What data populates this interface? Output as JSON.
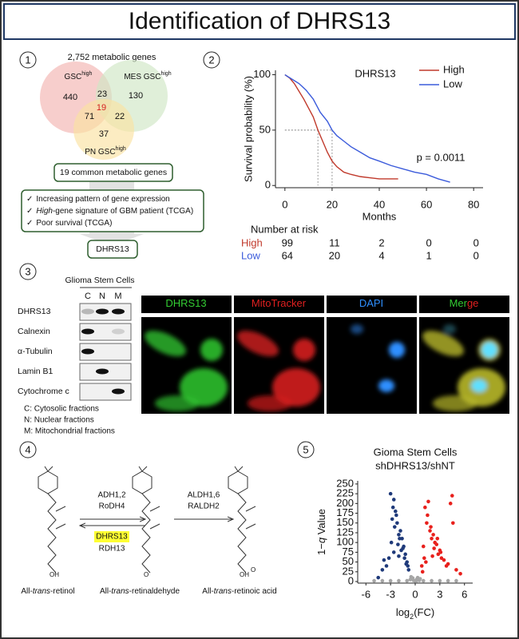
{
  "title": "Identification of DHRS13",
  "panels": [
    1,
    2,
    3,
    4,
    5
  ],
  "venn": {
    "caption": "2,752 metabolic genes",
    "sets": [
      {
        "label": "GSC",
        "sup": "high"
      },
      {
        "label": "MES GSC",
        "sup": "high"
      },
      {
        "label": "PN GSC",
        "sup": "high"
      }
    ],
    "counts": [
      440,
      23,
      130,
      19,
      71,
      22,
      37
    ],
    "common_box": "19 common metabolic genes",
    "criteria": [
      {
        "check": "✓",
        "text": "Increasing pattern of gene expression"
      },
      {
        "check": "✓",
        "italic": "High",
        "text": "-gene signature of GBM patient (TCGA)"
      },
      {
        "check": "✓",
        "text": "Poor survival (TCGA)"
      }
    ],
    "result": "DHRS13"
  },
  "chart_data": [
    {
      "type": "line",
      "title": "DHRS13",
      "xlabel": "Months",
      "ylabel": "Survival probability (%)",
      "xlim": [
        -4,
        84
      ],
      "xticks": [
        0,
        20,
        40,
        60,
        80
      ],
      "ylim": [
        -2,
        104
      ],
      "yticks": [
        0,
        50,
        100
      ],
      "annotation": "p = 0.0011",
      "medians": [
        14,
        20
      ],
      "median_level": 50,
      "series": [
        {
          "name": "High",
          "color": "#c0392b",
          "x": [
            0,
            2,
            4,
            6,
            8,
            10,
            12,
            14,
            16,
            18,
            20,
            22,
            25,
            28,
            32,
            36,
            40,
            44,
            48
          ],
          "values": [
            100,
            97,
            92,
            85,
            78,
            70,
            62,
            50,
            40,
            30,
            22,
            17,
            12,
            10,
            8,
            7,
            6,
            6,
            6
          ]
        },
        {
          "name": "Low",
          "color": "#3b5bdb",
          "x": [
            0,
            3,
            6,
            9,
            12,
            15,
            18,
            20,
            22,
            25,
            28,
            32,
            36,
            40,
            45,
            50,
            55,
            60,
            65,
            70
          ],
          "values": [
            100,
            96,
            92,
            86,
            78,
            66,
            58,
            50,
            45,
            40,
            35,
            30,
            25,
            22,
            18,
            15,
            12,
            10,
            6,
            3
          ]
        }
      ]
    },
    {
      "type": "scatter",
      "title": [
        "Gioma Stem Cells",
        "shDHRS13/shNT"
      ],
      "xlabel": [
        "log",
        "2",
        "(FC)"
      ],
      "ylabel": [
        "1−",
        "q",
        " Value"
      ],
      "xlim": [
        -7,
        7
      ],
      "xticks": [
        -6,
        -3,
        0,
        3,
        6
      ],
      "ylim": [
        -4,
        258
      ],
      "yticks": [
        0,
        25,
        50,
        75,
        100,
        125,
        150,
        175,
        200,
        225,
        250
      ],
      "series": [
        {
          "color": "#1f3a7a",
          "x": [
            -3.2,
            -3.0,
            -2.8,
            -2.6,
            -2.4,
            -2.2,
            -2.0,
            -1.8,
            -1.6,
            -1.4,
            -1.2,
            -1.0,
            -0.8,
            -3.5,
            -2.9,
            -2.5,
            -2.1,
            -1.7,
            -1.3,
            -0.9,
            -2.7,
            -2.3,
            -1.9,
            -1.5,
            -4.0,
            -4.5,
            -3.8,
            -1.1,
            -2.6,
            -2.0
          ],
          "values": [
            60,
            225,
            160,
            210,
            180,
            150,
            120,
            130,
            110,
            90,
            70,
            50,
            30,
            40,
            100,
            140,
            95,
            80,
            60,
            40,
            190,
            170,
            110,
            85,
            30,
            10,
            55,
            45,
            75,
            65
          ]
        },
        {
          "color": "#e8201c",
          "x": [
            0.8,
            1.0,
            1.2,
            1.4,
            1.6,
            1.8,
            2.0,
            2.2,
            2.4,
            2.6,
            2.8,
            3.0,
            3.2,
            3.5,
            3.8,
            4.0,
            4.3,
            4.6,
            5.0,
            5.5,
            1.1,
            1.5,
            1.9,
            2.3,
            2.7,
            3.1,
            4.5,
            1.3,
            2.1,
            0.9
          ],
          "values": [
            40,
            90,
            190,
            150,
            205,
            130,
            110,
            120,
            100,
            95,
            70,
            80,
            60,
            55,
            40,
            45,
            200,
            150,
            30,
            20,
            60,
            170,
            140,
            85,
            110,
            75,
            220,
            50,
            65,
            25
          ]
        },
        {
          "color": "#a6a6a6",
          "x": [
            -0.6,
            -0.4,
            -0.2,
            0,
            0.2,
            0.4,
            0.6,
            -0.5,
            0.3,
            0.1,
            -0.3,
            0.5,
            -5,
            -4,
            -3,
            -2,
            -1,
            1,
            2,
            3,
            4,
            5
          ],
          "values": [
            5,
            8,
            3,
            2,
            6,
            4,
            7,
            12,
            10,
            1,
            9,
            3,
            2,
            2,
            2,
            2,
            2,
            2,
            2,
            2,
            2,
            2
          ]
        }
      ]
    }
  ],
  "risk_table": {
    "title": "Number at risk",
    "rows": [
      {
        "name": "High",
        "color": "#c0392b",
        "values": [
          99,
          11,
          2,
          0,
          0
        ]
      },
      {
        "name": "Low",
        "color": "#3b5bdb",
        "values": [
          64,
          20,
          4,
          1,
          0
        ]
      }
    ]
  },
  "western": {
    "header": "Glioma Stem Cells",
    "lanes": [
      "C",
      "N",
      "M"
    ],
    "rows": [
      "DHRS13",
      "Calnexin",
      "α-Tubulin",
      "Lamin B1",
      "Cytochrome c"
    ],
    "legend": [
      "C: Cytosolic fractions",
      "N: Nuclear fractions",
      "M: Mitochondrial fractions"
    ]
  },
  "microscopy": {
    "channels": [
      {
        "parts": [
          {
            "text": "DHRS13",
            "color": "#33cc33"
          }
        ]
      },
      {
        "parts": [
          {
            "text": "MitoTracker",
            "color": "#e02020"
          }
        ]
      },
      {
        "parts": [
          {
            "text": "DAPI",
            "color": "#2f8fff"
          }
        ]
      },
      {
        "parts": [
          {
            "text": "Mer",
            "color": "#33cc33"
          },
          {
            "text": "ge",
            "color": "#e02020"
          }
        ]
      }
    ]
  },
  "pathway": {
    "steps": [
      {
        "enzymes": [
          "ADH1,2",
          "RoDH4"
        ],
        "reverse": [
          "DHRS13",
          "RDH13"
        ]
      },
      {
        "enzymes": [
          "ALDH1,6",
          "RALDH2"
        ]
      }
    ],
    "compounds": [
      {
        "parts": [
          "All-",
          "trans",
          "-retinol"
        ],
        "groups": [
          "OH"
        ]
      },
      {
        "parts": [
          "All-",
          "trans",
          "-retinaldehyde"
        ],
        "groups": [
          "O"
        ]
      },
      {
        "parts": [
          "All-",
          "trans",
          "-retinoic acid"
        ],
        "groups": [
          "OH",
          "O"
        ]
      }
    ]
  }
}
